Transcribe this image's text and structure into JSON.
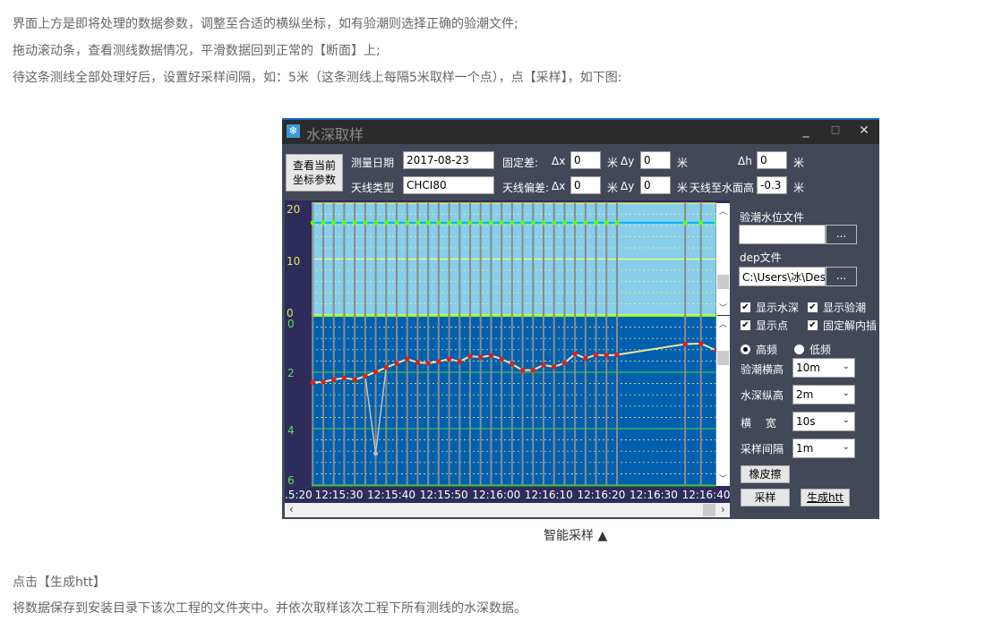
{
  "article": {
    "lines_top": [
      "界面上方是即将处理的数据参数，调整至合适的横纵坐标，如有验潮则选择正确的验潮文件;",
      "拖动滚动条，查看测线数据情况，平滑数据回到正常的【断面】上;",
      "待这条测线全部处理好后，设置好采样间隔，如：5米（这条测线上每隔5米取样一个点），点【采样】，如下图:"
    ],
    "caption": "智能采样 ▲",
    "lines_bottom": [
      "点击【生成htt】",
      "将数据保存到安装目录下该次工程的文件夹中。并依次取样该次工程下所有测线的水深数据。"
    ]
  },
  "window": {
    "title": "水深取样",
    "icon": "snowflake-icon",
    "minimize": "_",
    "maximize": "□",
    "close": "✕",
    "view_params_button": "查看当前坐标参数",
    "survey_date_label": "测量日期",
    "survey_date": "2017-08-23",
    "antenna_type_label": "天线类型",
    "antenna_type": "CHCI80",
    "fixed_diff_label": "固定差:",
    "antenna_offset_label": "天线偏差:",
    "dx_label": "Δx",
    "dy_label": "Δy",
    "dh_label": "Δh",
    "unit": "米",
    "fixed_dx": "0",
    "fixed_dy": "0",
    "fixed_dh": "0",
    "offset_dx": "0",
    "offset_dy": "0",
    "antenna_height_label": "天线至水面高",
    "antenna_height": "-0.3",
    "tide_file_label": "验潮水位文件",
    "tide_file": "",
    "browse": "...",
    "dep_file_label": "dep文件",
    "dep_file": "C:\\Users\\冰\\Des",
    "checks": [
      {
        "label": "显示水深",
        "checked": true
      },
      {
        "label": "显示验潮",
        "checked": true
      },
      {
        "label": "显示点",
        "checked": true
      },
      {
        "label": "固定解内插",
        "checked": true
      }
    ],
    "radios": [
      {
        "label": "高频",
        "selected": true
      },
      {
        "label": "低频",
        "selected": false
      }
    ],
    "selects": [
      {
        "label": "验潮横高",
        "value": "10m"
      },
      {
        "label": "水深纵高",
        "value": "2m"
      },
      {
        "label": "横　 宽",
        "value": "10s"
      },
      {
        "label": "采样间隔",
        "value": "1m"
      }
    ],
    "eraser_button": "橡皮擦",
    "sample_button": "采样",
    "generate_button": "生成htt"
  },
  "chart_data": {
    "type": "line",
    "tide_axis": {
      "ticks": [
        "20",
        "10",
        "0"
      ],
      "range": [
        0,
        20
      ]
    },
    "depth_axis": {
      "ticks": [
        "0",
        "2",
        "4",
        "6"
      ],
      "range": [
        0,
        6
      ],
      "inverted": true
    },
    "time_ticks": [
      ".5:20",
      "12:15:30",
      "12:15:40",
      "12:15:50",
      "12:16:00",
      "12:16:10",
      "12:16:20",
      "12:16:30",
      "12:16:40"
    ],
    "times": [
      "12:15:25",
      "12:15:27",
      "12:15:29",
      "12:15:31",
      "12:15:33",
      "12:15:35",
      "12:15:37",
      "12:15:39",
      "12:15:41",
      "12:15:43",
      "12:15:45",
      "12:15:47",
      "12:15:49",
      "12:15:51",
      "12:15:53",
      "12:15:55",
      "12:15:57",
      "12:15:59",
      "12:16:01",
      "12:16:03",
      "12:16:05",
      "12:16:07",
      "12:16:09",
      "12:16:11",
      "12:16:13",
      "12:16:15",
      "12:16:17",
      "12:16:19",
      "12:16:21",
      "12:16:23",
      "12:16:36",
      "12:16:39",
      "12:16:42"
    ],
    "depth": [
      2.36,
      2.34,
      2.26,
      2.2,
      2.26,
      2.14,
      1.99,
      1.83,
      1.68,
      1.53,
      1.65,
      1.68,
      1.62,
      1.53,
      1.62,
      1.43,
      1.46,
      1.41,
      1.53,
      1.71,
      1.93,
      1.92,
      1.74,
      1.81,
      1.67,
      1.35,
      1.51,
      1.38,
      1.4,
      1.38,
      1.0,
      0.98,
      1.23
    ],
    "raw_spike": {
      "time": "12:15:37",
      "depth": 4.88
    },
    "tide": 16.5,
    "colors": {
      "tide_bg": "#87ceeb",
      "depth_bg": "#0060b0",
      "point": "#e02020",
      "line": "#f0e6a0",
      "tide_point": "#66ff00",
      "tide_line": "#00b0ff",
      "grid_tide": "#ffff66",
      "grid_depth": "#40c040",
      "sample_line": "#8a8a8a"
    }
  }
}
